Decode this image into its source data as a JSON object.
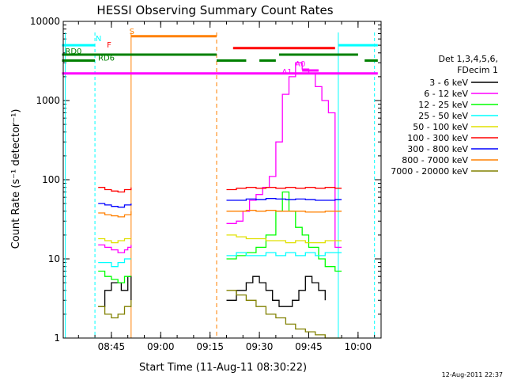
{
  "chart_data": {
    "type": "line",
    "title": "HESSI Observing Summary Count Rates",
    "xlabel": "Start Time (11-Aug-11 08:30:22)",
    "ylabel": "Count Rate (s⁻¹ detector⁻¹)",
    "yscale": "log",
    "xlim": [
      "08:30:22",
      "10:07:00"
    ],
    "ylim": [
      1,
      10000
    ],
    "x_ticks": [
      "08:45",
      "09:00",
      "09:15",
      "09:30",
      "09:45",
      "10:00"
    ],
    "y_ticks": [
      "1",
      "10",
      "100",
      "1000",
      "10000"
    ],
    "legend": {
      "header": [
        "Det 1,3,4,5,6,",
        "FDecim 1"
      ],
      "placement": "right",
      "entries": [
        {
          "label": "3 - 6 keV",
          "color": "#000000"
        },
        {
          "label": "6 - 12 keV",
          "color": "#ff00ff"
        },
        {
          "label": "12 - 25 keV",
          "color": "#00ff00"
        },
        {
          "label": "25 - 50 keV",
          "color": "#00ffff"
        },
        {
          "label": "50 - 100 keV",
          "color": "#e0e000"
        },
        {
          "label": "100 - 300 keV",
          "color": "#ff0000"
        },
        {
          "label": "300 - 800 keV",
          "color": "#0000ff"
        },
        {
          "label": "800 - 7000 keV",
          "color": "#ff8000"
        },
        {
          "label": "7000 - 20000 keV",
          "color": "#808000"
        }
      ]
    },
    "series": [
      {
        "band": "3 - 6 keV",
        "color": "#000000",
        "segments": [
          [
            [
              "08:41",
              "2.5"
            ],
            [
              "08:43",
              "4"
            ],
            [
              "08:45",
              "5"
            ],
            [
              "08:48",
              "4"
            ],
            [
              "08:50",
              "6"
            ],
            [
              "08:51",
              "3"
            ]
          ],
          [
            [
              "09:20",
              "3"
            ],
            [
              "09:23",
              "4"
            ],
            [
              "09:26",
              "5"
            ],
            [
              "09:28",
              "6"
            ],
            [
              "09:30",
              "5"
            ],
            [
              "09:32",
              "4"
            ],
            [
              "09:34",
              "3"
            ],
            [
              "09:36",
              "2.5"
            ],
            [
              "09:38",
              "2.5"
            ],
            [
              "09:40",
              "3"
            ],
            [
              "09:42",
              "4"
            ],
            [
              "09:44",
              "6"
            ],
            [
              "09:46",
              "5"
            ],
            [
              "09:48",
              "4"
            ],
            [
              "09:50",
              "3"
            ]
          ]
        ]
      },
      {
        "band": "6 - 12 keV",
        "color": "#ff00ff",
        "segments": [
          [
            [
              "08:41",
              "15"
            ],
            [
              "08:43",
              "14"
            ],
            [
              "08:45",
              "13"
            ],
            [
              "08:47",
              "12"
            ],
            [
              "08:49",
              "13"
            ],
            [
              "08:50",
              "14"
            ],
            [
              "08:51",
              "15"
            ]
          ],
          [
            [
              "09:20",
              "28"
            ],
            [
              "09:23",
              "30"
            ],
            [
              "09:25",
              "40"
            ],
            [
              "09:27",
              "55"
            ],
            [
              "09:29",
              "65"
            ],
            [
              "09:31",
              "80"
            ],
            [
              "09:33",
              "110"
            ],
            [
              "09:35",
              "300"
            ],
            [
              "09:37",
              "1200"
            ],
            [
              "09:39",
              "2000"
            ],
            [
              "09:41",
              "3000"
            ],
            [
              "09:43",
              "2500"
            ],
            [
              "09:45",
              "2200"
            ],
            [
              "09:47",
              "1500"
            ],
            [
              "09:49",
              "1000"
            ],
            [
              "09:51",
              "700"
            ],
            [
              "09:53",
              "14"
            ],
            [
              "09:55",
              "14"
            ]
          ]
        ]
      },
      {
        "band": "12 - 25 keV",
        "color": "#00ff00",
        "segments": [
          [
            [
              "08:41",
              "7"
            ],
            [
              "08:43",
              "6"
            ],
            [
              "08:45",
              "5.5"
            ],
            [
              "08:47",
              "5"
            ],
            [
              "08:49",
              "6"
            ],
            [
              "08:51",
              "6"
            ]
          ],
          [
            [
              "09:20",
              "10"
            ],
            [
              "09:23",
              "11"
            ],
            [
              "09:26",
              "12"
            ],
            [
              "09:29",
              "14"
            ],
            [
              "09:32",
              "20"
            ],
            [
              "09:35",
              "40"
            ],
            [
              "09:37",
              "70"
            ],
            [
              "09:39",
              "40"
            ],
            [
              "09:41",
              "25"
            ],
            [
              "09:43",
              "20"
            ],
            [
              "09:45",
              "14"
            ],
            [
              "09:48",
              "10"
            ],
            [
              "09:50",
              "8"
            ],
            [
              "09:53",
              "7"
            ],
            [
              "09:55",
              "7"
            ]
          ]
        ]
      },
      {
        "band": "25 - 50 keV",
        "color": "#00ffff",
        "segments": [
          [
            [
              "08:41",
              "9"
            ],
            [
              "08:43",
              "9"
            ],
            [
              "08:45",
              "8"
            ],
            [
              "08:47",
              "9"
            ],
            [
              "08:49",
              "10"
            ],
            [
              "08:51",
              "10"
            ]
          ],
          [
            [
              "09:20",
              "11"
            ],
            [
              "09:23",
              "12"
            ],
            [
              "09:26",
              "11"
            ],
            [
              "09:29",
              "11"
            ],
            [
              "09:32",
              "12"
            ],
            [
              "09:35",
              "11"
            ],
            [
              "09:38",
              "12"
            ],
            [
              "09:41",
              "11"
            ],
            [
              "09:44",
              "12"
            ],
            [
              "09:47",
              "11"
            ],
            [
              "09:50",
              "12"
            ],
            [
              "09:53",
              "12"
            ],
            [
              "09:55",
              "12"
            ]
          ]
        ]
      },
      {
        "band": "50 - 100 keV",
        "color": "#e0e000",
        "segments": [
          [
            [
              "08:41",
              "18"
            ],
            [
              "08:43",
              "17"
            ],
            [
              "08:45",
              "16"
            ],
            [
              "08:47",
              "17"
            ],
            [
              "08:49",
              "18"
            ],
            [
              "08:51",
              "18"
            ]
          ],
          [
            [
              "09:20",
              "20"
            ],
            [
              "09:23",
              "19"
            ],
            [
              "09:26",
              "18"
            ],
            [
              "09:29",
              "18"
            ],
            [
              "09:32",
              "17"
            ],
            [
              "09:35",
              "17"
            ],
            [
              "09:38",
              "16"
            ],
            [
              "09:41",
              "17"
            ],
            [
              "09:44",
              "16"
            ],
            [
              "09:47",
              "16"
            ],
            [
              "09:50",
              "17"
            ],
            [
              "09:53",
              "17"
            ],
            [
              "09:55",
              "17"
            ]
          ]
        ]
      },
      {
        "band": "100 - 300 keV",
        "color": "#ff0000",
        "segments": [
          [
            [
              "08:41",
              "80"
            ],
            [
              "08:43",
              "75"
            ],
            [
              "08:45",
              "72"
            ],
            [
              "08:47",
              "70"
            ],
            [
              "08:49",
              "75"
            ],
            [
              "08:51",
              "80"
            ]
          ],
          [
            [
              "09:20",
              "75"
            ],
            [
              "09:23",
              "78"
            ],
            [
              "09:26",
              "80"
            ],
            [
              "09:29",
              "78"
            ],
            [
              "09:32",
              "80"
            ],
            [
              "09:35",
              "78"
            ],
            [
              "09:38",
              "80"
            ],
            [
              "09:41",
              "78"
            ],
            [
              "09:44",
              "80"
            ],
            [
              "09:47",
              "78"
            ],
            [
              "09:50",
              "80"
            ],
            [
              "09:53",
              "78"
            ],
            [
              "09:55",
              "78"
            ]
          ]
        ]
      },
      {
        "band": "300 - 800 keV",
        "color": "#0000ff",
        "segments": [
          [
            [
              "08:41",
              "50"
            ],
            [
              "08:43",
              "48"
            ],
            [
              "08:45",
              "46"
            ],
            [
              "08:47",
              "45"
            ],
            [
              "08:49",
              "48"
            ],
            [
              "08:51",
              "50"
            ]
          ],
          [
            [
              "09:20",
              "55"
            ],
            [
              "09:23",
              "55"
            ],
            [
              "09:26",
              "57"
            ],
            [
              "09:29",
              "56"
            ],
            [
              "09:32",
              "58"
            ],
            [
              "09:35",
              "57"
            ],
            [
              "09:38",
              "56"
            ],
            [
              "09:41",
              "57"
            ],
            [
              "09:44",
              "56"
            ],
            [
              "09:47",
              "55"
            ],
            [
              "09:50",
              "55"
            ],
            [
              "09:53",
              "56"
            ],
            [
              "09:55",
              "56"
            ]
          ]
        ]
      },
      {
        "band": "800 - 7000 keV",
        "color": "#ff8000",
        "segments": [
          [
            [
              "08:41",
              "38"
            ],
            [
              "08:43",
              "36"
            ],
            [
              "08:45",
              "35"
            ],
            [
              "08:47",
              "34"
            ],
            [
              "08:49",
              "36"
            ],
            [
              "08:51",
              "40"
            ]
          ],
          [
            [
              "09:20",
              "40"
            ],
            [
              "09:23",
              "40"
            ],
            [
              "09:26",
              "41"
            ],
            [
              "09:29",
              "40"
            ],
            [
              "09:32",
              "41"
            ],
            [
              "09:35",
              "40"
            ],
            [
              "09:38",
              "40"
            ],
            [
              "09:41",
              "40"
            ],
            [
              "09:44",
              "39"
            ],
            [
              "09:47",
              "39"
            ],
            [
              "09:50",
              "40"
            ],
            [
              "09:53",
              "40"
            ],
            [
              "09:55",
              "40"
            ]
          ]
        ]
      },
      {
        "band": "7000 - 20000 keV",
        "color": "#808000",
        "segments": [
          [
            [
              "08:41",
              "2.5"
            ],
            [
              "08:43",
              "2"
            ],
            [
              "08:45",
              "1.8"
            ],
            [
              "08:47",
              "2"
            ],
            [
              "08:49",
              "2.5"
            ],
            [
              "08:51",
              "3"
            ]
          ],
          [
            [
              "09:20",
              "4"
            ],
            [
              "09:23",
              "3.5"
            ],
            [
              "09:26",
              "3"
            ],
            [
              "09:29",
              "2.5"
            ],
            [
              "09:32",
              "2"
            ],
            [
              "09:35",
              "1.8"
            ],
            [
              "09:38",
              "1.5"
            ],
            [
              "09:41",
              "1.3"
            ],
            [
              "09:44",
              "1.2"
            ],
            [
              "09:47",
              "1.1"
            ],
            [
              "09:50",
              "1"
            ],
            [
              "09:53",
              "1"
            ],
            [
              "09:55",
              "1"
            ]
          ]
        ]
      }
    ],
    "flags": [
      {
        "label": "N",
        "color": "#00ffff",
        "level": 5000
      },
      {
        "label": "S",
        "color": "#ff8000",
        "level": 6500
      },
      {
        "label": "F",
        "color": "#ff0000",
        "level": 4600
      },
      {
        "label": "RD0",
        "color": "#008000",
        "level": 3800
      },
      {
        "label": "RD6",
        "color": "#008000",
        "level": 3200
      },
      {
        "label": "A1",
        "color": "#ff00ff",
        "level": 2200
      },
      {
        "label": "A0",
        "color": "#ff00ff",
        "level": 2400
      }
    ],
    "footer_timestamp": "12-Aug-2011 22:37"
  }
}
